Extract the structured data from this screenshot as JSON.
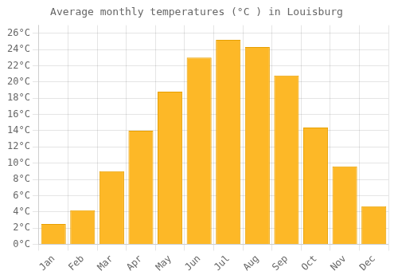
{
  "chart_data": {
    "type": "bar",
    "title": "Average monthly temperatures (°C ) in Louisburg",
    "categories": [
      "Jan",
      "Feb",
      "Mar",
      "Apr",
      "May",
      "Jun",
      "Jul",
      "Aug",
      "Sep",
      "Oct",
      "Nov",
      "Dec"
    ],
    "values": [
      2.5,
      4.2,
      9.0,
      14.0,
      18.8,
      23.0,
      25.2,
      24.3,
      20.8,
      14.4,
      9.6,
      4.7
    ],
    "color": "#FDB827",
    "ylim": [
      0,
      27
    ],
    "yticks": [
      {
        "value": 0,
        "label": "0°C"
      },
      {
        "value": 2,
        "label": "2°C"
      },
      {
        "value": 4,
        "label": "4°C"
      },
      {
        "value": 6,
        "label": "6°C"
      },
      {
        "value": 8,
        "label": "8°C"
      },
      {
        "value": 10,
        "label": "10°C"
      },
      {
        "value": 12,
        "label": "12°C"
      },
      {
        "value": 14,
        "label": "14°C"
      },
      {
        "value": 16,
        "label": "16°C"
      },
      {
        "value": 18,
        "label": "18°C"
      },
      {
        "value": 20,
        "label": "20°C"
      },
      {
        "value": 22,
        "label": "22°C"
      },
      {
        "value": 24,
        "label": "24°C"
      },
      {
        "value": 26,
        "label": "26°C"
      }
    ],
    "grid": true
  }
}
